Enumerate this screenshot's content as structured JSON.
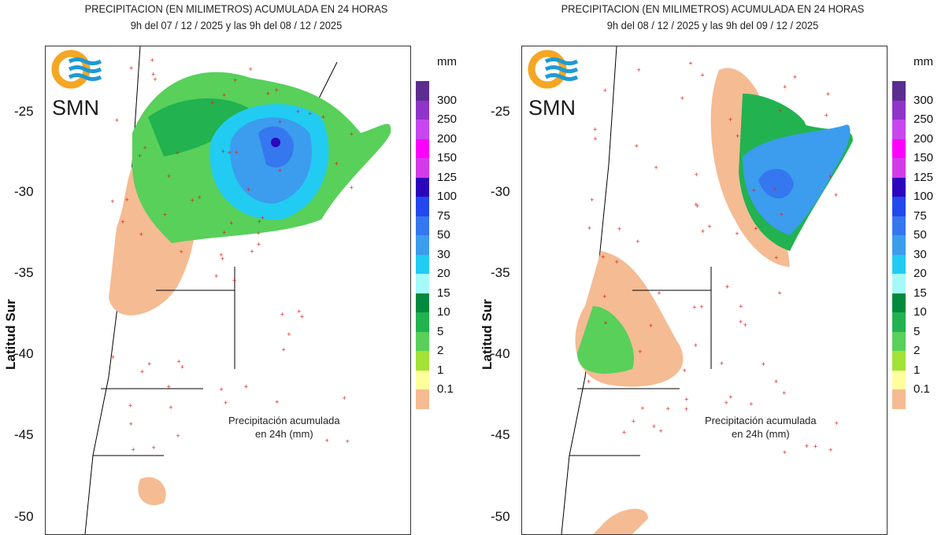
{
  "y_axis": {
    "label": "Latitud Sur",
    "ticks": [
      "-25",
      "-30",
      "-35",
      "-40",
      "-45",
      "-50"
    ]
  },
  "legend": {
    "unit": "mm",
    "labels": [
      "300",
      "250",
      "200",
      "150",
      "125",
      "100",
      "75",
      "50",
      "30",
      "20",
      "15",
      "10",
      "5",
      "2",
      "1",
      "0.1"
    ],
    "colors": [
      "#5b2d8f",
      "#8f34c8",
      "#c746ef",
      "#ff00ff",
      "#d33be8",
      "#2c06bd",
      "#2348ee",
      "#3577ee",
      "#3c9cee",
      "#22cbf2",
      "#a5f9f9",
      "#008a3e",
      "#22b24f",
      "#58d05a",
      "#a3e236",
      "#ffff9c",
      "#f5bb93"
    ]
  },
  "logo": {
    "text": "SMN"
  },
  "panels": [
    {
      "title": "PRECIPITACION (EN MILIMETROS) ACUMULADA EN 24 HORAS",
      "subtitle": "9h del 07 / 12 / 2025  y las 9h del 08 / 12 / 2025",
      "note_line1": "Precipitación acumulada",
      "note_line2": "en 24h (mm)"
    },
    {
      "title": "PRECIPITACION (EN MILIMETROS) ACUMULADA EN 24 HORAS",
      "subtitle": "9h del 08 / 12 / 2025  y las 9h del 09 / 12 / 2025",
      "note_line1": "Precipitación acumulada",
      "note_line2": "en 24h (mm)"
    }
  ]
}
